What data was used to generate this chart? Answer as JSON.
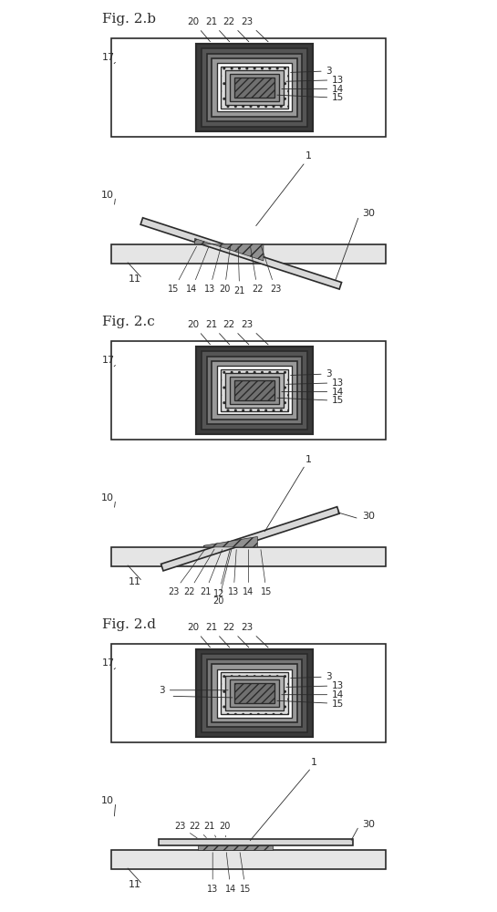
{
  "fig_labels": [
    "Fig. 2.b",
    "Fig. 2.c",
    "Fig. 2.d"
  ],
  "bg_color": "#ffffff",
  "line_color": "#2a2a2a",
  "hatch_color": "#2a2a2a",
  "slide_fill": "#f0f0f0",
  "inner_fill": "#d8d8d8",
  "sample_fill": "#c0c0c0"
}
